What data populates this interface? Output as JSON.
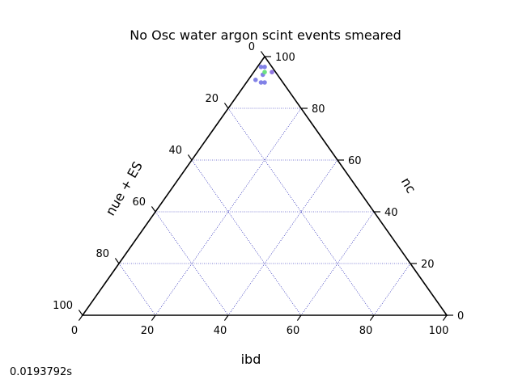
{
  "chart_data": {
    "type": "scatter",
    "projection": "ternary",
    "title": "No Osc water argon scint events smeared",
    "axes": {
      "bottom": {
        "label": "ibd",
        "ticks": [
          "0",
          "20",
          "40",
          "60",
          "80",
          "100"
        ],
        "range": [
          0,
          100
        ]
      },
      "left": {
        "label": "nue + ES",
        "ticks": [
          "100",
          "80",
          "60",
          "40",
          "20",
          "0"
        ],
        "range": [
          0,
          100
        ]
      },
      "right": {
        "label": "nc",
        "ticks": [
          "0",
          "20",
          "40",
          "60",
          "80",
          "100"
        ],
        "range": [
          0,
          100
        ]
      }
    },
    "grid": true,
    "grid_color": "#0000aa",
    "frame_color": "#000000",
    "points": [
      {
        "ibd": 1,
        "nue_es": 3,
        "nc": 96,
        "color": "#7b7be6"
      },
      {
        "ibd": 2,
        "nue_es": 2,
        "nc": 96,
        "color": "#7b7be6"
      },
      {
        "ibd": 5,
        "nue_es": 1,
        "nc": 94,
        "color": "#8a6fe0"
      },
      {
        "ibd": 3,
        "nue_es": 4,
        "nc": 93,
        "color": "#7b7be6"
      },
      {
        "ibd": 3,
        "nue_es": 3,
        "nc": 94,
        "color": "#66e07a"
      },
      {
        "ibd": 2,
        "nue_es": 7,
        "nc": 91,
        "color": "#7b7be6"
      },
      {
        "ibd": 4,
        "nue_es": 6,
        "nc": 90,
        "color": "#7b7be6"
      },
      {
        "ibd": 5,
        "nue_es": 5,
        "nc": 90,
        "color": "#7b7be6"
      }
    ]
  },
  "footer": {
    "timing": "0.0193792s"
  }
}
